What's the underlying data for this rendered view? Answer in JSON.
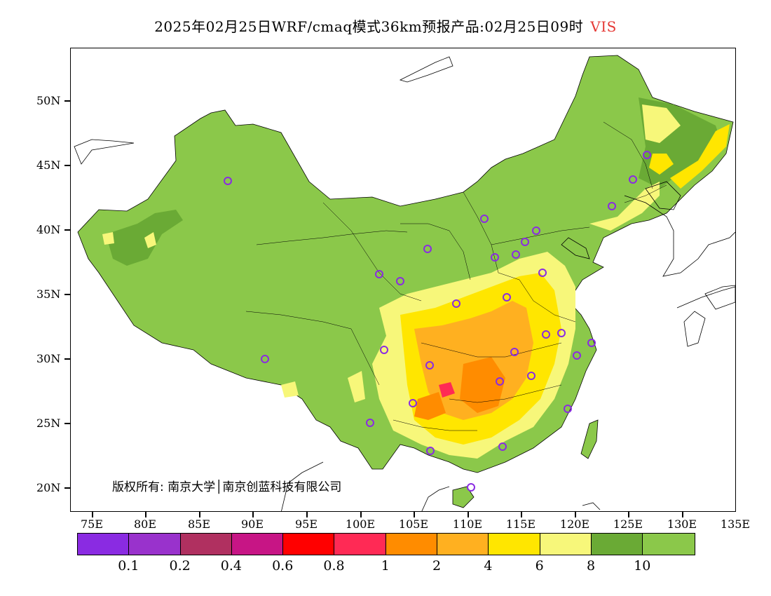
{
  "title": {
    "main": "2025年02月25日WRF/cmaq模式36km预报产品:02月25日09时",
    "variable": "VIS"
  },
  "axes": {
    "y_labels": [
      "50N",
      "45N",
      "40N",
      "35N",
      "30N",
      "25N",
      "20N"
    ],
    "x_labels": [
      "75E",
      "80E",
      "85E",
      "90E",
      "95E",
      "100E",
      "105E",
      "110E",
      "115E",
      "120E",
      "125E",
      "130E",
      "135E"
    ]
  },
  "copyright": "版权所有: 南京大学│南京创蓝科技有限公司",
  "legend": {
    "colors": [
      "#8a2be2",
      "#9932cc",
      "#b03060",
      "#c71585",
      "#ff0000",
      "#ff2a55",
      "#ff8c00",
      "#ffb020",
      "#ffe600",
      "#f7f77a",
      "#6aaa35",
      "#8bc84a"
    ],
    "labels": [
      "0.1",
      "0.2",
      "0.4",
      "0.6",
      "0.8",
      "1",
      "2",
      "4",
      "6",
      "8",
      "10"
    ]
  },
  "colors": {
    "land_high": "#8bc84a",
    "land_mid": "#6aaa35",
    "light_yellow": "#f7f77a",
    "yellow": "#ffe600",
    "orange_light": "#ffb020",
    "orange": "#ff8c00",
    "red": "#ff2a55",
    "station_marker": "#8a2be2"
  }
}
